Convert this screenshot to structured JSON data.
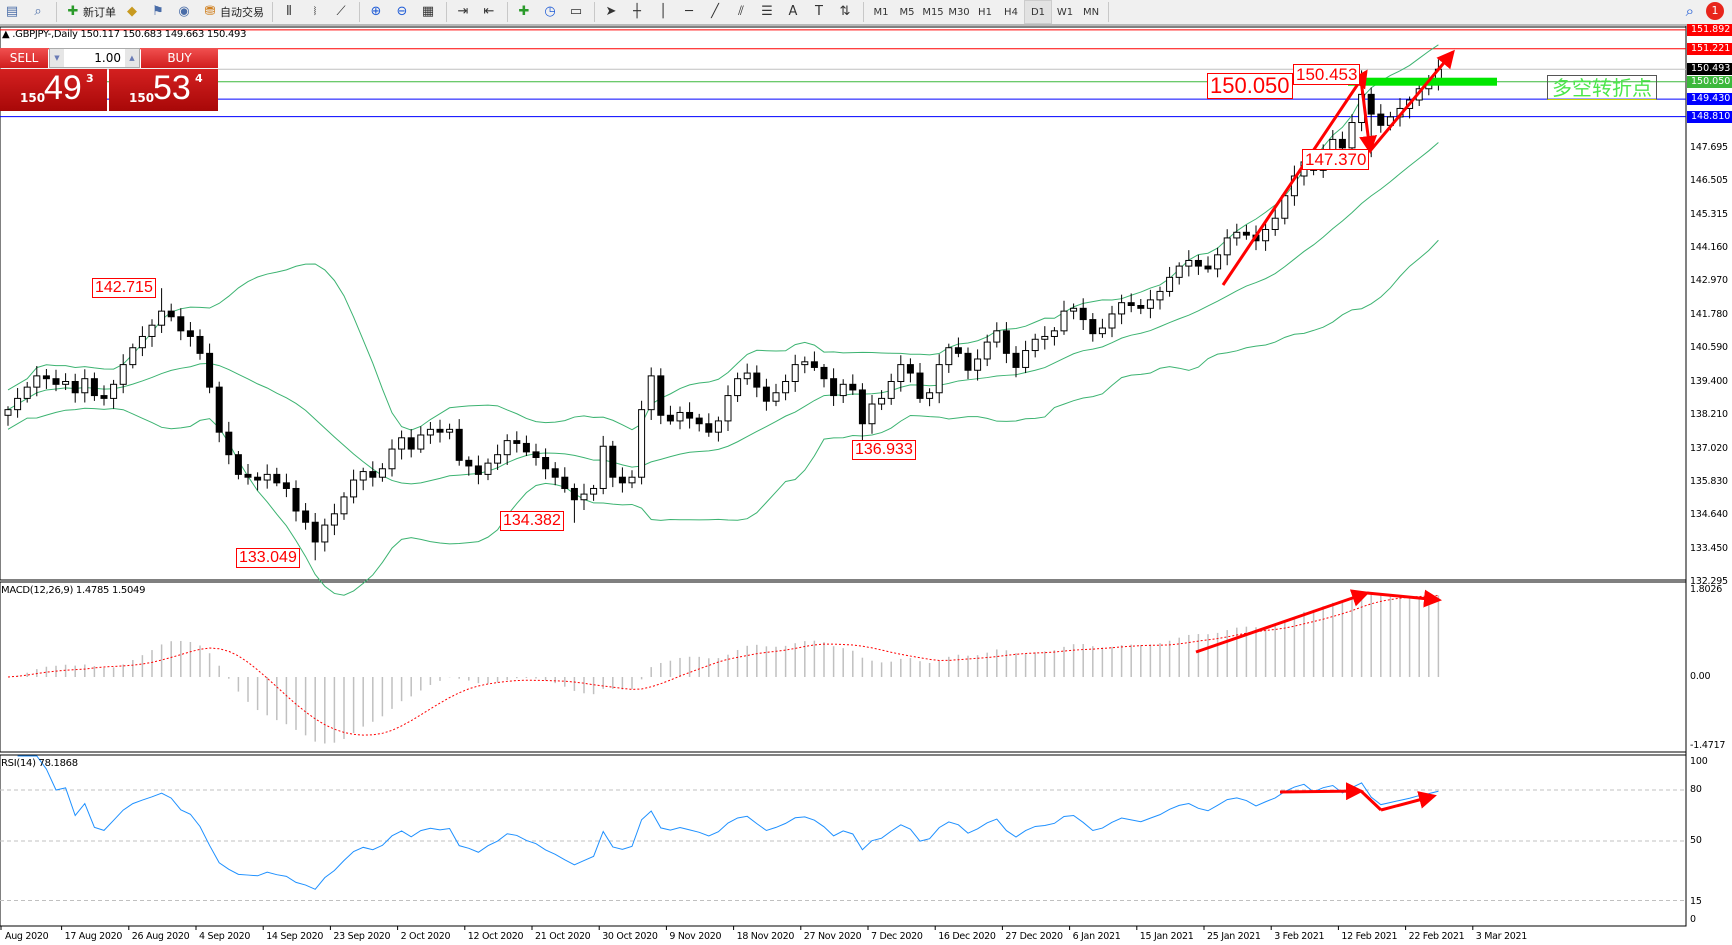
{
  "toolbar": {
    "items": [
      {
        "icon": "profiles-icon",
        "label": ""
      },
      {
        "icon": "zoom-window-icon",
        "label": ""
      },
      {
        "icon": "new-order-icon",
        "label": "新订单"
      },
      {
        "icon": "market-watch-icon",
        "label": ""
      },
      {
        "icon": "navigator-icon",
        "label": ""
      },
      {
        "icon": "signals-icon",
        "label": ""
      },
      {
        "icon": "auto-trading-icon",
        "label": "自动交易"
      }
    ],
    "chart_tools": [
      "bar-chart-icon",
      "candlestick-icon",
      "line-chart-icon",
      "zoom-in-icon",
      "zoom-out-icon",
      "tile-windows-icon",
      "auto-scroll-icon",
      "chart-shift-icon",
      "indicators-icon",
      "periods-icon",
      "templates-icon",
      "cursor-icon",
      "crosshair-icon",
      "vertical-line-icon",
      "horizontal-line-icon",
      "trendline-icon",
      "equidistant-channel-icon",
      "fibonacci-icon",
      "text-icon",
      "text-label-icon",
      "arrows-icon"
    ],
    "timeframes": [
      "M1",
      "M5",
      "M15",
      "M30",
      "H1",
      "H4",
      "D1",
      "W1",
      "MN"
    ],
    "active_timeframe": "D1",
    "alert_count": "1"
  },
  "symbol_header": "▲ .GBPJPY-,Daily  150.117 150.683 149.663 150.493",
  "trade_panel": {
    "sell_label": "SELL",
    "buy_label": "BUY",
    "lot": "1.00",
    "sell_price": {
      "prefix": "150",
      "big": "49",
      "sup": "3"
    },
    "buy_price": {
      "prefix": "150",
      "big": "53",
      "sup": "4"
    }
  },
  "price_levels": [
    {
      "value": 151.892,
      "label": "151.892",
      "color": "#ff0000"
    },
    {
      "value": 151.221,
      "label": "151.221",
      "color": "#ff0000"
    },
    {
      "value": 150.493,
      "label": "150.493",
      "color": "#000000",
      "line": "#c0c0c0"
    },
    {
      "value": 150.05,
      "label": "150.050",
      "color": "#3cb83c",
      "line": "#3cb83c"
    },
    {
      "value": 149.43,
      "label": "149.430",
      "color": "#0000ff"
    },
    {
      "value": 148.81,
      "label": "148.810",
      "color": "#0000ff"
    }
  ],
  "price_axis": [
    "147.695",
    "146.505",
    "145.315",
    "144.160",
    "142.970",
    "141.780",
    "140.590",
    "139.400",
    "138.210",
    "137.020",
    "135.830",
    "134.640",
    "133.450",
    "132.295"
  ],
  "annotations": [
    {
      "text": "142.715",
      "value": 142.715
    },
    {
      "text": "133.049",
      "value": 133.049
    },
    {
      "text": "134.382",
      "value": 134.382
    },
    {
      "text": "136.933",
      "value": 136.933
    },
    {
      "text": "147.370",
      "value": 147.37
    },
    {
      "text": "150.453",
      "value": 150.453
    },
    {
      "text": "150.050",
      "value": 150.05
    }
  ],
  "pivot_label": "多空转折点",
  "macd": {
    "title": "MACD(12,26,9) 1.4785 1.5049",
    "axis": [
      "1.8026",
      "0.00",
      "-1.4717"
    ],
    "range": [
      -1.4717,
      1.8026
    ]
  },
  "rsi": {
    "title": "RSI(14) 78.1868",
    "axis": [
      "100",
      "80",
      "50",
      "15",
      "0"
    ],
    "levels": [
      80,
      50,
      15
    ]
  },
  "date_axis": [
    "Aug 2020",
    "17 Aug 2020",
    "26 Aug 2020",
    "4 Sep 2020",
    "14 Sep 2020",
    "23 Sep 2020",
    "2 Oct 2020",
    "12 Oct 2020",
    "21 Oct 2020",
    "30 Oct 2020",
    "9 Nov 2020",
    "18 Nov 2020",
    "27 Nov 2020",
    "7 Dec 2020",
    "16 Dec 2020",
    "27 Dec 2020",
    "6 Jan 2021",
    "15 Jan 2021",
    "25 Jan 2021",
    "3 Feb 2021",
    "12 Feb 2021",
    "22 Feb 2021",
    "3 Mar 2021"
  ],
  "colors": {
    "bands": "#3cb371",
    "macd_hist": "#c0c0c0",
    "macd_signal": "#ff0000",
    "rsi": "#1e90ff",
    "arrows": "#ff0000",
    "pivot_bar": "#00e600"
  },
  "chart_data": {
    "type": "candlestick",
    "symbol": "GBPJPY",
    "timeframe": "Daily",
    "ylim": [
      132.295,
      151.892
    ],
    "closes": [
      138.4,
      138.8,
      139.2,
      139.6,
      139.5,
      139.3,
      139.4,
      139.0,
      139.5,
      138.9,
      138.8,
      139.3,
      140.0,
      140.6,
      141.0,
      141.4,
      141.9,
      141.7,
      141.2,
      141.0,
      140.4,
      139.2,
      137.6,
      136.8,
      136.1,
      136.0,
      135.9,
      136.1,
      135.8,
      135.6,
      134.8,
      134.4,
      133.7,
      134.3,
      134.7,
      135.3,
      135.9,
      136.2,
      136.0,
      136.3,
      137.0,
      137.4,
      137.0,
      137.5,
      137.7,
      137.6,
      137.7,
      136.6,
      136.4,
      136.1,
      136.5,
      136.8,
      137.3,
      137.2,
      136.9,
      136.7,
      136.3,
      136.0,
      135.6,
      135.2,
      135.4,
      135.6,
      137.1,
      136.0,
      135.8,
      136.0,
      138.4,
      139.6,
      138.2,
      138.0,
      138.3,
      138.1,
      137.9,
      137.6,
      138.0,
      138.9,
      139.5,
      139.7,
      139.2,
      138.7,
      139.0,
      139.4,
      140.0,
      140.1,
      139.9,
      139.5,
      138.9,
      139.3,
      139.1,
      137.9,
      138.6,
      138.8,
      139.4,
      140.0,
      139.7,
      138.8,
      139.0,
      140.0,
      140.6,
      140.4,
      139.8,
      140.2,
      140.8,
      141.2,
      140.4,
      139.9,
      140.5,
      140.9,
      141.0,
      141.2,
      141.9,
      142.0,
      141.6,
      141.1,
      141.3,
      141.8,
      142.2,
      142.1,
      142.0,
      142.3,
      142.6,
      143.1,
      143.5,
      143.7,
      143.5,
      143.4,
      143.9,
      144.5,
      144.7,
      144.6,
      144.4,
      144.8,
      145.2,
      146.0,
      146.7,
      147.2,
      146.9,
      147.6,
      148.0,
      147.7,
      148.6,
      149.6,
      148.9,
      148.5,
      148.8,
      149.1,
      149.4,
      149.8,
      150.1,
      150.493
    ],
    "marked_extremes": [
      {
        "bar": 16,
        "high": 142.715
      },
      {
        "bar": 32,
        "low": 133.049
      },
      {
        "bar": 59,
        "low": 134.382
      },
      {
        "bar": 89,
        "low": 136.933
      },
      {
        "bar": 141,
        "high": 150.453
      },
      {
        "bar": 142,
        "low": 147.37
      }
    ],
    "indicators": [
      "Bollinger Bands(20,2)",
      "MACD(12,26,9)",
      "RSI(14)"
    ]
  }
}
